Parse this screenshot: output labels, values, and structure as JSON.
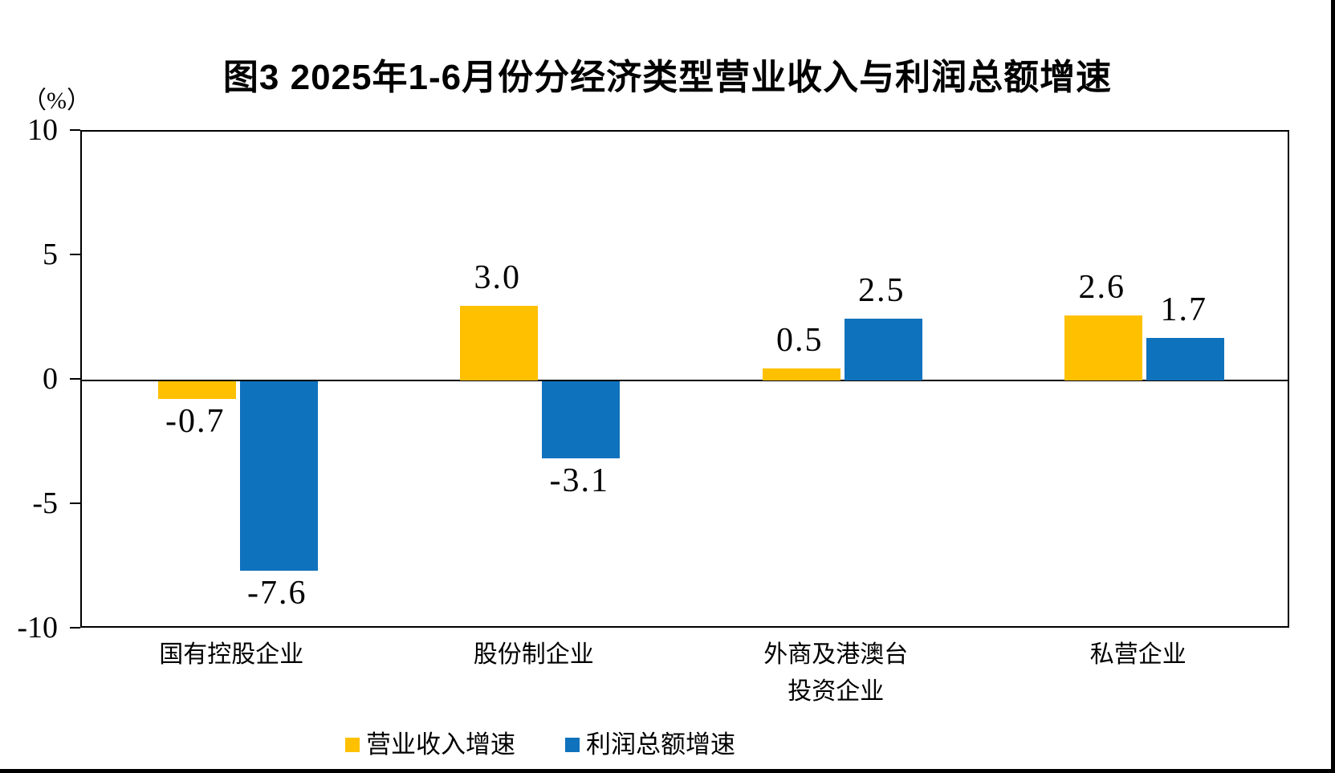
{
  "title": "图3  2025年1-6月份分经济类型营业收入与利润总额增速",
  "unit_label": "（%）",
  "y_axis": {
    "ticks": [
      "10",
      "5",
      "0",
      "-5",
      "-10"
    ],
    "max": 10,
    "min": -10
  },
  "legend": {
    "items": [
      {
        "label": "营业收入增速",
        "color": "#FFC000"
      },
      {
        "label": "利润总额增速",
        "color": "#0F72BD"
      }
    ]
  },
  "colors": {
    "revenue_bar": "#FFC000",
    "profit_bar": "#0F72BD",
    "axis": "#000000"
  },
  "chart_data": {
    "type": "bar",
    "categories": [
      "国有控股企业",
      "股份制企业",
      "外商及港澳台\n投资企业",
      "私营企业"
    ],
    "series": [
      {
        "name": "营业收入增速",
        "color": "#FFC000",
        "values": [
          -0.7,
          3.0,
          0.5,
          2.6
        ],
        "labels": [
          "-0.7",
          "3.0",
          "0.5",
          "2.6"
        ]
      },
      {
        "name": "利润总额增速",
        "color": "#0F72BD",
        "values": [
          -7.6,
          -3.1,
          2.5,
          1.7
        ],
        "labels": [
          "-7.6",
          "-3.1",
          "2.5",
          "1.7"
        ]
      }
    ],
    "title": "图3  2025年1-6月份分经济类型营业收入与利润总额增速",
    "xlabel": "",
    "ylabel": "（%）",
    "ylim": [
      -10,
      10
    ],
    "grid": false,
    "legend_position": "bottom"
  }
}
